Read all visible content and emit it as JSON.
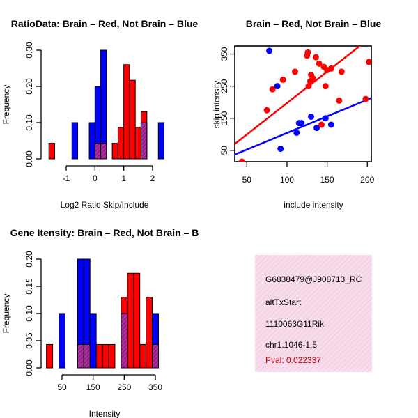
{
  "chart_data": [
    {
      "type": "bar",
      "title": "RatioData: Brain – Red, Not Brain – Blue",
      "xlabel": "Log2 Ratio Skip/Include",
      "ylabel": "Frequency",
      "xlim": [
        -1.6,
        2.2
      ],
      "ylim": [
        0,
        0.3
      ],
      "xticks": [
        -1,
        0,
        1,
        2
      ],
      "yticks": [
        0.0,
        0.1,
        0.2,
        0.3
      ],
      "bin_width": 0.2,
      "series": [
        {
          "name": "Brain",
          "color": "#ff0000",
          "bins": [
            {
              "start": -1.6,
              "value": 0.043
            },
            {
              "start": 0.0,
              "value": 0.043
            },
            {
              "start": 0.2,
              "value": 0.043
            },
            {
              "start": 0.6,
              "value": 0.043
            },
            {
              "start": 0.8,
              "value": 0.087
            },
            {
              "start": 1.0,
              "value": 0.26
            },
            {
              "start": 1.2,
              "value": 0.217
            },
            {
              "start": 1.4,
              "value": 0.087
            },
            {
              "start": 1.6,
              "value": 0.13
            }
          ]
        },
        {
          "name": "Not Brain",
          "color": "#0000ff",
          "bins": [
            {
              "start": -0.8,
              "value": 0.1
            },
            {
              "start": -0.2,
              "value": 0.1
            },
            {
              "start": 0.0,
              "value": 0.2
            },
            {
              "start": 0.2,
              "value": 0.3
            },
            {
              "start": 1.6,
              "value": 0.1
            },
            {
              "start": 2.2,
              "value": 0.1
            }
          ]
        }
      ]
    },
    {
      "type": "scatter",
      "title": "Brain – Red, Not Brain – Blue",
      "xlabel": "include intensity",
      "ylabel": "skip intensity",
      "xlim": [
        35,
        205
      ],
      "ylim": [
        15,
        375
      ],
      "xticks": [
        50,
        100,
        150,
        200
      ],
      "yticks": [
        50,
        150,
        250,
        350
      ],
      "series": [
        {
          "name": "Brain",
          "color": "#ff0000",
          "points": [
            [
              44,
              15
            ],
            [
              75,
              175
            ],
            [
              82,
              240
            ],
            [
              95,
              270
            ],
            [
              110,
              295
            ],
            [
              125,
              345
            ],
            [
              126,
              355
            ],
            [
              127,
              250
            ],
            [
              129,
              265
            ],
            [
              130,
              285
            ],
            [
              132,
              275
            ],
            [
              136,
              340
            ],
            [
              140,
              320
            ],
            [
              143,
              130
            ],
            [
              146,
              310
            ],
            [
              148,
              250
            ],
            [
              150,
              300
            ],
            [
              155,
              305
            ],
            [
              165,
              205
            ],
            [
              168,
              295
            ],
            [
              198,
              210
            ],
            [
              202,
              325
            ]
          ],
          "fit": [
            [
              35,
              70
            ],
            [
              205,
              403
            ]
          ]
        },
        {
          "name": "Not Brain",
          "color": "#0000ff",
          "points": [
            [
              78,
              360
            ],
            [
              88,
              250
            ],
            [
              92,
              55
            ],
            [
              112,
              105
            ],
            [
              115,
              135
            ],
            [
              118,
              135
            ],
            [
              130,
              155
            ],
            [
              137,
              120
            ],
            [
              148,
              150
            ],
            [
              155,
              130
            ]
          ],
          "fit": [
            [
              35,
              37
            ],
            [
              205,
              213
            ]
          ]
        }
      ]
    },
    {
      "type": "bar",
      "title": "Gene Itensity: Brain – Red, Not Brain – B",
      "xlabel": "Intensity",
      "ylabel": "Frequency",
      "xlim": [
        0,
        360
      ],
      "ylim": [
        0,
        0.2
      ],
      "xticks": [
        50,
        150,
        250,
        350
      ],
      "yticks": [
        0.0,
        0.05,
        0.1,
        0.15,
        0.2
      ],
      "bin_width": 20,
      "series": [
        {
          "name": "Brain",
          "color": "#ff0000",
          "bins": [
            {
              "start": 0,
              "value": 0.043
            },
            {
              "start": 100,
              "value": 0.043
            },
            {
              "start": 120,
              "value": 0.043
            },
            {
              "start": 160,
              "value": 0.043
            },
            {
              "start": 180,
              "value": 0.043
            },
            {
              "start": 200,
              "value": 0.043
            },
            {
              "start": 240,
              "value": 0.13
            },
            {
              "start": 260,
              "value": 0.174
            },
            {
              "start": 280,
              "value": 0.174
            },
            {
              "start": 300,
              "value": 0.043
            },
            {
              "start": 320,
              "value": 0.13
            },
            {
              "start": 340,
              "value": 0.043
            }
          ]
        },
        {
          "name": "Not Brain",
          "color": "#0000ff",
          "bins": [
            {
              "start": 40,
              "value": 0.1
            },
            {
              "start": 100,
              "value": 0.2
            },
            {
              "start": 120,
              "value": 0.2
            },
            {
              "start": 140,
              "value": 0.1
            },
            {
              "start": 240,
              "value": 0.1
            },
            {
              "start": 340,
              "value": 0.1
            }
          ]
        }
      ]
    }
  ],
  "info_panel": {
    "probe_id": "G6838479@J908713_RC",
    "event_type": "altTxStart",
    "gene": "1110063G11Rik",
    "location": "chr1.1046-1.5",
    "pval": "Pval: 0.022337",
    "background_color": "#f4d6e8",
    "pval_color": "#c00000"
  }
}
